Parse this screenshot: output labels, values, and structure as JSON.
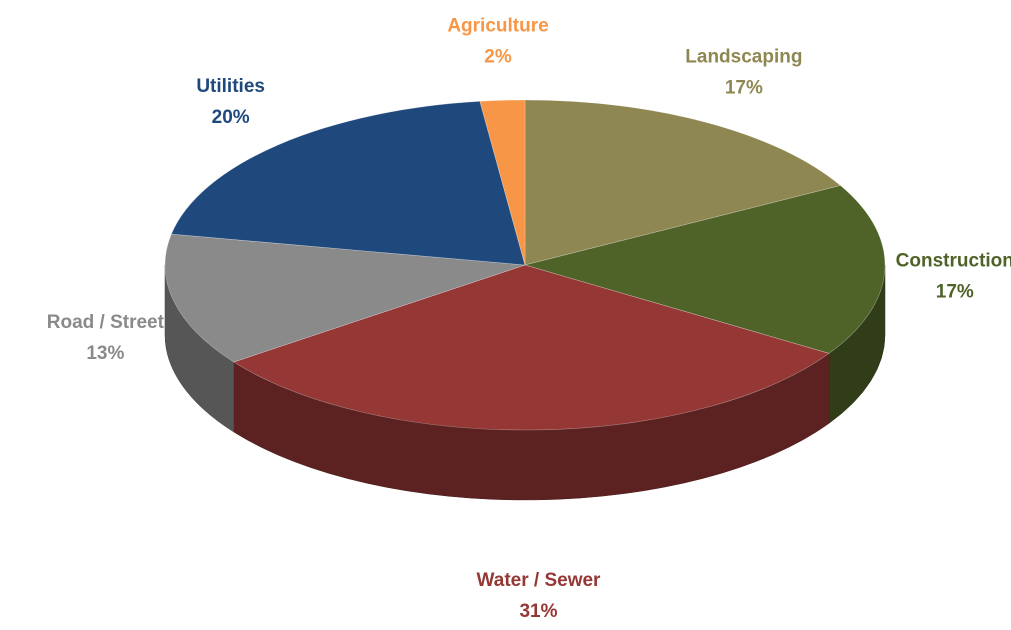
{
  "chart_data": {
    "type": "pie3d",
    "categories": [
      "Landscaping",
      "Construction",
      "Water / Sewer",
      "Road / Street",
      "Utilities",
      "Agriculture"
    ],
    "values": [
      17,
      17,
      31,
      13,
      20,
      2
    ],
    "value_labels": [
      "17%",
      "17%",
      "31%",
      "13%",
      "20%",
      "2%"
    ],
    "colors": [
      "#8f8752",
      "#4f6228",
      "#953735",
      "#8a8a8a",
      "#1f497d",
      "#f79646"
    ]
  }
}
